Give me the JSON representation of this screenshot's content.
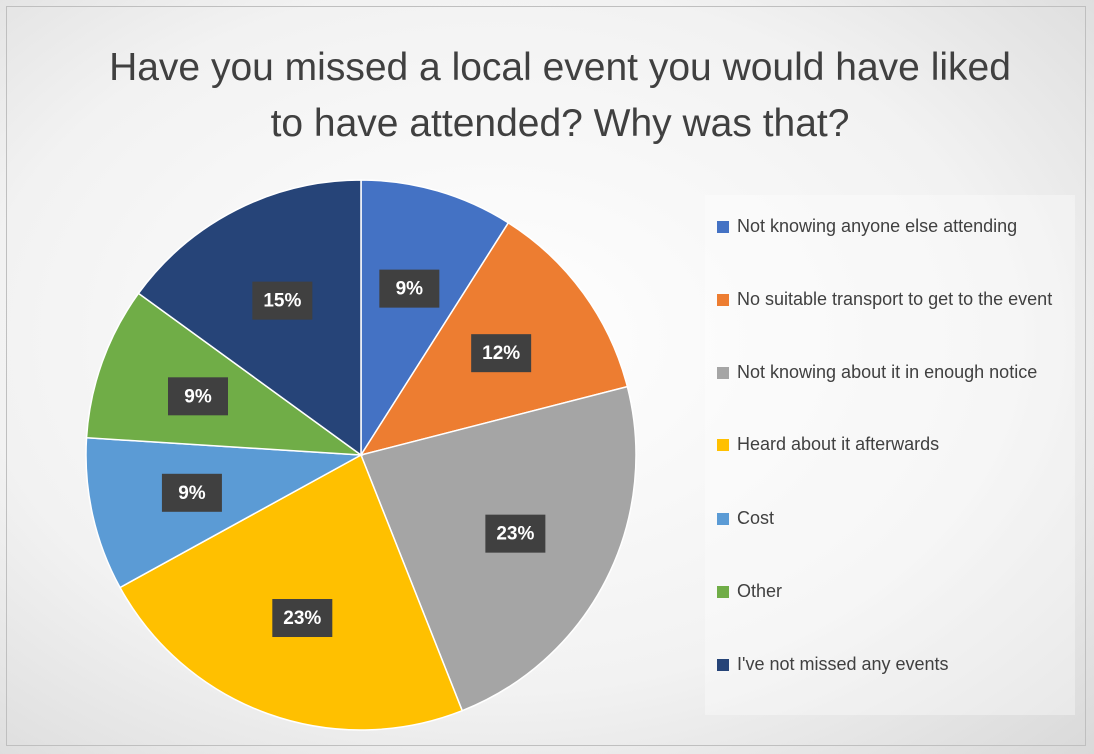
{
  "chart_data": {
    "type": "pie",
    "title": "Have you missed a local event you would have liked to have attended? Why was that?",
    "categories": [
      "Not knowing anyone else attending",
      "No suitable transport to get to the event",
      "Not knowing about it in enough notice",
      "Heard about it afterwards",
      "Cost",
      "Other",
      "I've not missed any events"
    ],
    "values": [
      9,
      12,
      23,
      23,
      9,
      9,
      15
    ],
    "value_labels": [
      "9%",
      "12%",
      "23%",
      "23%",
      "9%",
      "9%",
      "15%"
    ],
    "colors": [
      "#4472c4",
      "#ed7d31",
      "#a5a5a5",
      "#ffc000",
      "#5b9bd5",
      "#70ad47",
      "#264478"
    ],
    "legend": "right"
  }
}
